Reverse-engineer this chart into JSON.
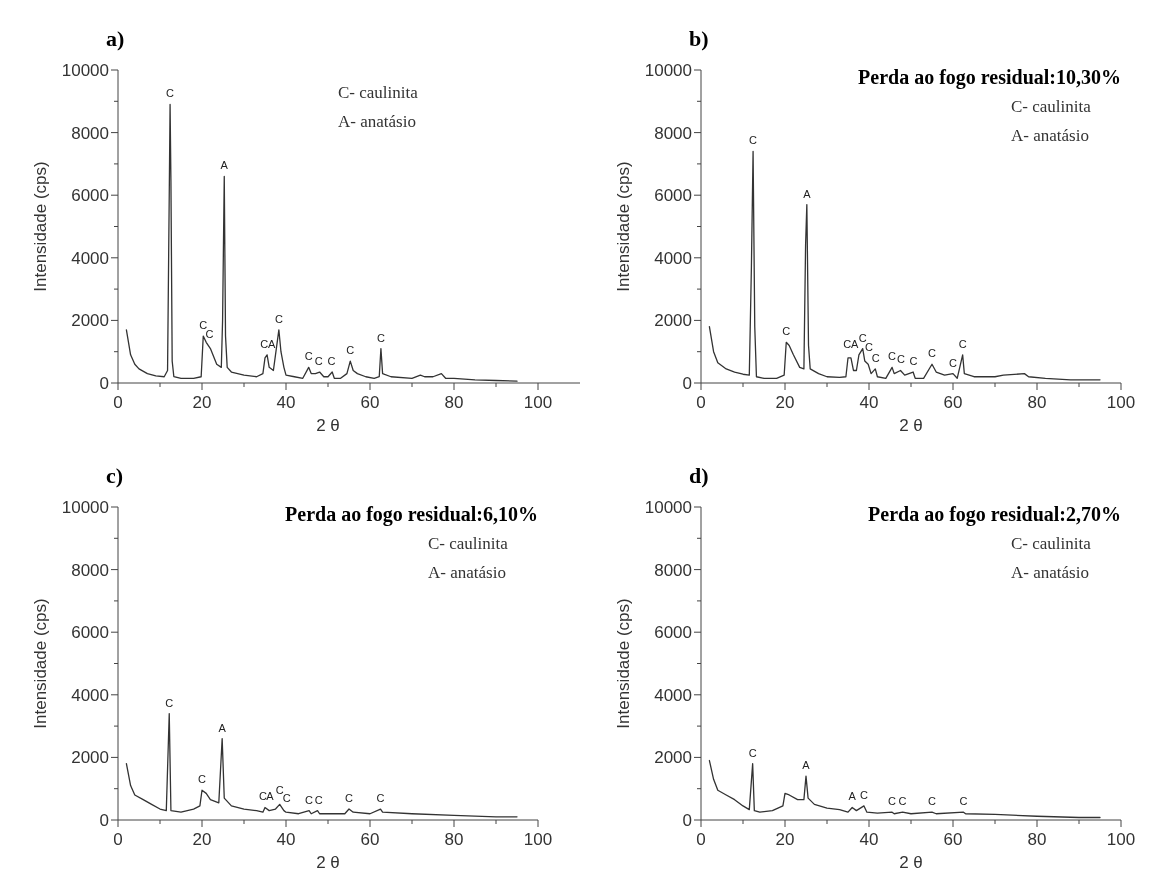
{
  "chart_data": [
    {
      "type": "line",
      "title": "a)",
      "xlabel": "2 θ",
      "ylabel": "Intensidade (cps)",
      "xlim": [
        0,
        110
      ],
      "ylim": [
        0,
        10000
      ],
      "xticks": [
        0,
        {
          "value": 10,
          "label": null
        },
        20,
        {
          "value": 30,
          "label": null
        },
        40,
        {
          "value": 50,
          "label": null
        },
        60,
        {
          "value": 70,
          "label": null
        },
        80,
        {
          "value": 90,
          "label": null
        },
        100
      ],
      "yticks": [
        0,
        {
          "value": 1000,
          "label": null
        },
        2000,
        {
          "value": 3000,
          "label": null
        },
        4000,
        {
          "value": 5000,
          "label": null
        },
        6000,
        {
          "value": 7000,
          "label": null
        },
        8000,
        {
          "value": 9000,
          "label": null
        },
        10000
      ],
      "marker": "none",
      "line_style": "solid",
      "grid": false,
      "series": [
        {
          "color": "#333333",
          "x": [
            2,
            3,
            4,
            5,
            7,
            9,
            11,
            11.8,
            12.2,
            12.4,
            12.6,
            12.9,
            13.3,
            15,
            18,
            19.8,
            20.3,
            21,
            22,
            23.5,
            24.6,
            24.9,
            25.3,
            25.6,
            26,
            27,
            30,
            33,
            34.5,
            35,
            35.5,
            36,
            37,
            37.5,
            38.3,
            38.8,
            39.5,
            40,
            42,
            44,
            45.4,
            46,
            47,
            48,
            49,
            50,
            51,
            51.5,
            53,
            54.5,
            55.3,
            56,
            57,
            59,
            61,
            62.2,
            62.6,
            63,
            65,
            70,
            72,
            73,
            75,
            77,
            78,
            80,
            85,
            90,
            95
          ],
          "values": [
            1700,
            900,
            600,
            450,
            300,
            230,
            200,
            400,
            6000,
            8900,
            6500,
            700,
            200,
            150,
            150,
            200,
            1500,
            1300,
            1100,
            600,
            500,
            2000,
            6600,
            1500,
            500,
            350,
            250,
            200,
            300,
            800,
            900,
            500,
            400,
            900,
            1700,
            1000,
            500,
            250,
            200,
            150,
            500,
            300,
            300,
            350,
            200,
            200,
            350,
            150,
            150,
            300,
            700,
            400,
            300,
            200,
            150,
            200,
            1100,
            300,
            200,
            150,
            250,
            200,
            200,
            300,
            150,
            150,
            100,
            80,
            60
          ]
        }
      ],
      "annotations": [
        "C- caulinita",
        "A- anatásio",
        {
          "text": "C",
          "x": 12.4,
          "y": 8900
        },
        {
          "text": "C",
          "x": 20.3,
          "y": 1500
        },
        {
          "text": "C",
          "x": 21.8,
          "y": 1200
        },
        {
          "text": "A",
          "x": 25.3,
          "y": 6600
        },
        {
          "text": "C",
          "x": 34.8,
          "y": 900
        },
        {
          "text": "A",
          "x": 36.6,
          "y": 900
        },
        {
          "text": "C",
          "x": 38.3,
          "y": 1700
        },
        {
          "text": "C",
          "x": 45.4,
          "y": 500
        },
        {
          "text": "C",
          "x": 47.8,
          "y": 350
        },
        {
          "text": "C",
          "x": 50.8,
          "y": 350
        },
        {
          "text": "C",
          "x": 55.3,
          "y": 700
        },
        {
          "text": "C",
          "x": 62.6,
          "y": 1100
        }
      ]
    },
    {
      "type": "line",
      "title": "b)",
      "subtitle": "Perda ao fogo residual:10,30%",
      "xlabel": "2 θ",
      "ylabel": "Intensidade (cps)",
      "xlim": [
        0,
        100
      ],
      "ylim": [
        0,
        10000
      ],
      "xticks": [
        0,
        {
          "value": 10,
          "label": null
        },
        20,
        {
          "value": 30,
          "label": null
        },
        40,
        {
          "value": 50,
          "label": null
        },
        60,
        {
          "value": 70,
          "label": null
        },
        80,
        {
          "value": 90,
          "label": null
        },
        100
      ],
      "yticks": [
        0,
        {
          "value": 1000,
          "label": null
        },
        2000,
        {
          "value": 3000,
          "label": null
        },
        4000,
        {
          "value": 5000,
          "label": null
        },
        6000,
        {
          "value": 7000,
          "label": null
        },
        8000,
        {
          "value": 9000,
          "label": null
        },
        10000
      ],
      "marker": "none",
      "line_style": "solid",
      "grid": false,
      "series": [
        {
          "color": "#333333",
          "x": [
            2,
            3,
            4,
            6,
            8,
            10,
            11.5,
            12,
            12.4,
            12.8,
            13.2,
            15,
            18,
            19.8,
            20.3,
            21,
            22,
            23.5,
            24.5,
            24.9,
            25.2,
            25.6,
            26,
            28,
            30,
            33,
            34.5,
            35,
            35.7,
            36.3,
            37,
            37.6,
            38.5,
            39,
            39.8,
            40.5,
            41.5,
            42,
            44,
            45.5,
            46,
            47.5,
            48.5,
            50.5,
            51,
            53,
            55,
            56,
            58,
            60,
            61,
            62.3,
            62.7,
            65,
            70,
            72,
            77,
            78,
            82,
            88,
            95
          ],
          "values": [
            1800,
            1000,
            650,
            450,
            350,
            280,
            250,
            3700,
            7400,
            1800,
            200,
            150,
            150,
            250,
            1300,
            1200,
            900,
            500,
            450,
            4400,
            5700,
            1200,
            450,
            300,
            200,
            180,
            200,
            800,
            800,
            400,
            400,
            900,
            1100,
            700,
            600,
            300,
            450,
            200,
            150,
            500,
            300,
            400,
            250,
            350,
            150,
            150,
            600,
            350,
            250,
            300,
            150,
            900,
            300,
            200,
            200,
            250,
            300,
            200,
            150,
            100,
            100
          ]
        }
      ],
      "annotations": [
        "C- caulinita",
        "A- anatásio",
        {
          "text": "C",
          "x": 12.4,
          "y": 7400
        },
        {
          "text": "A",
          "x": 25.2,
          "y": 5700
        },
        {
          "text": "C",
          "x": 20.3,
          "y": 1300
        },
        {
          "text": "C",
          "x": 34.8,
          "y": 900
        },
        {
          "text": "A",
          "x": 36.6,
          "y": 900
        },
        {
          "text": "C",
          "x": 38.5,
          "y": 1100
        },
        {
          "text": "C",
          "x": 40,
          "y": 800
        },
        {
          "text": "C",
          "x": 41.6,
          "y": 450
        },
        {
          "text": "C",
          "x": 45.5,
          "y": 500
        },
        {
          "text": "C",
          "x": 47.6,
          "y": 400
        },
        {
          "text": "C",
          "x": 50.6,
          "y": 350
        },
        {
          "text": "C",
          "x": 55,
          "y": 600
        },
        {
          "text": "C",
          "x": 60,
          "y": 300
        },
        {
          "text": "C",
          "x": 62.3,
          "y": 900
        }
      ]
    },
    {
      "type": "line",
      "title": "c)",
      "subtitle": "Perda ao fogo residual:6,10%",
      "xlabel": "2 θ",
      "ylabel": "Intensidade (cps)",
      "xlim": [
        0,
        100
      ],
      "ylim": [
        0,
        10000
      ],
      "xticks": [
        0,
        {
          "value": 10,
          "label": null
        },
        20,
        {
          "value": 30,
          "label": null
        },
        40,
        {
          "value": 50,
          "label": null
        },
        60,
        {
          "value": 70,
          "label": null
        },
        80,
        {
          "value": 90,
          "label": null
        },
        100
      ],
      "yticks": [
        0,
        {
          "value": 1000,
          "label": null
        },
        2000,
        {
          "value": 3000,
          "label": null
        },
        4000,
        {
          "value": 5000,
          "label": null
        },
        6000,
        {
          "value": 7000,
          "label": null
        },
        8000,
        {
          "value": 9000,
          "label": null
        },
        10000
      ],
      "marker": "none",
      "line_style": "solid",
      "grid": false,
      "series": [
        {
          "color": "#333333",
          "x": [
            2,
            3,
            4,
            6,
            8,
            10,
            11.5,
            12.2,
            12.6,
            15,
            18,
            19.5,
            20,
            21,
            22,
            24,
            24.8,
            25.3,
            27,
            30,
            33,
            34.5,
            35,
            36,
            37.5,
            38.5,
            39.5,
            40,
            43,
            45.5,
            46,
            47.5,
            48,
            52,
            54,
            55,
            56,
            60,
            62.5,
            63,
            70,
            80,
            90,
            95
          ],
          "values": [
            1800,
            1100,
            800,
            650,
            500,
            350,
            300,
            3400,
            300,
            250,
            350,
            450,
            950,
            850,
            650,
            550,
            2600,
            700,
            450,
            350,
            300,
            250,
            400,
            300,
            350,
            500,
            300,
            250,
            200,
            300,
            200,
            300,
            200,
            200,
            200,
            350,
            250,
            200,
            350,
            250,
            200,
            150,
            100,
            100
          ]
        }
      ],
      "annotations": [
        "C- caulinita",
        "A- anatásio",
        {
          "text": "C",
          "x": 12.2,
          "y": 3400
        },
        {
          "text": "C",
          "x": 20,
          "y": 950
        },
        {
          "text": "A",
          "x": 24.8,
          "y": 2600
        },
        {
          "text": "C",
          "x": 34.5,
          "y": 400
        },
        {
          "text": "A",
          "x": 36.2,
          "y": 400
        },
        {
          "text": "C",
          "x": 38.5,
          "y": 600
        },
        {
          "text": "C",
          "x": 40.2,
          "y": 350
        },
        {
          "text": "C",
          "x": 45.5,
          "y": 300
        },
        {
          "text": "C",
          "x": 47.8,
          "y": 300
        },
        {
          "text": "C",
          "x": 55,
          "y": 350
        },
        {
          "text": "C",
          "x": 62.5,
          "y": 350
        }
      ]
    },
    {
      "type": "line",
      "title": "d)",
      "subtitle": "Perda ao fogo residual:2,70%",
      "xlabel": "2 θ",
      "ylabel": "Intensidade (cps)",
      "xlim": [
        0,
        100
      ],
      "ylim": [
        0,
        10000
      ],
      "xticks": [
        0,
        {
          "value": 10,
          "label": null
        },
        20,
        {
          "value": 30,
          "label": null
        },
        40,
        {
          "value": 50,
          "label": null
        },
        60,
        {
          "value": 70,
          "label": null
        },
        80,
        {
          "value": 90,
          "label": null
        },
        100
      ],
      "yticks": [
        0,
        {
          "value": 1000,
          "label": null
        },
        2000,
        {
          "value": 3000,
          "label": null
        },
        4000,
        {
          "value": 5000,
          "label": null
        },
        6000,
        {
          "value": 7000,
          "label": null
        },
        8000,
        {
          "value": 9000,
          "label": null
        },
        10000
      ],
      "marker": "none",
      "line_style": "solid",
      "grid": false,
      "series": [
        {
          "color": "#333333",
          "x": [
            2,
            3,
            4,
            6,
            8,
            10,
            11.5,
            12.3,
            12.7,
            14,
            17,
            19.5,
            20,
            21,
            23,
            24.5,
            25,
            25.5,
            27,
            30,
            33,
            35,
            36,
            37,
            38.8,
            39.5,
            42,
            45.5,
            46,
            48,
            50,
            55,
            56,
            62.5,
            63,
            70,
            80,
            90,
            95
          ],
          "values": [
            1900,
            1300,
            950,
            800,
            650,
            450,
            330,
            1800,
            300,
            250,
            300,
            450,
            850,
            800,
            650,
            650,
            1400,
            700,
            500,
            380,
            330,
            250,
            400,
            300,
            450,
            250,
            220,
            250,
            200,
            250,
            200,
            250,
            200,
            250,
            200,
            180,
            120,
            80,
            80
          ]
        }
      ],
      "annotations": [
        "C- caulinita",
        "A- anatásio",
        {
          "text": "C",
          "x": 12.3,
          "y": 1800
        },
        {
          "text": "A",
          "x": 25,
          "y": 1400
        },
        {
          "text": "A",
          "x": 36,
          "y": 400
        },
        {
          "text": "C",
          "x": 38.8,
          "y": 450
        },
        {
          "text": "C",
          "x": 45.5,
          "y": 250
        },
        {
          "text": "C",
          "x": 48,
          "y": 250
        },
        {
          "text": "C",
          "x": 55,
          "y": 250
        },
        {
          "text": "C",
          "x": 62.5,
          "y": 250
        }
      ]
    }
  ]
}
